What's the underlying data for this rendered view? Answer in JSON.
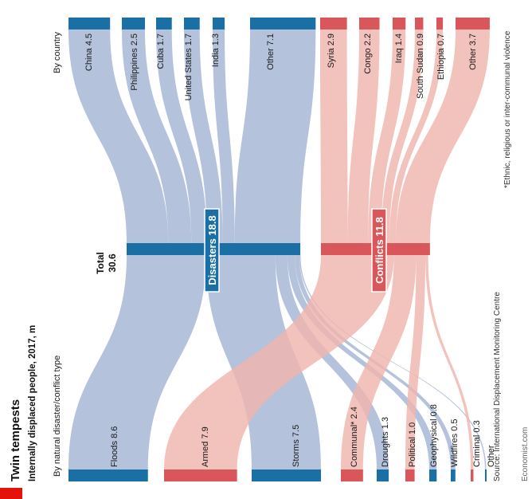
{
  "title": "Twin tempests",
  "subtitle": "Internally displaced people, 2017, m",
  "axis_by_country": "By country",
  "axis_by_type": "By natural disaster/conflict type",
  "total_label": "Total",
  "total_value": "30.6",
  "footnote": "*Ethnic, religious or inter-communal violence",
  "source": "Source: International Displacement Monitoring Centre",
  "credit": "Economist.com",
  "colors": {
    "disaster_flow": "#a3b5d3",
    "conflict_flow": "#efb4ae",
    "disaster_node": "#1a6fa5",
    "conflict_node": "#d9565a",
    "accent_red": "#e3120b"
  },
  "chart_data": {
    "type": "sankey",
    "title": "Twin tempests",
    "subtitle": "Internally displaced people, 2017, m",
    "unit": "m",
    "total": 30.6,
    "groups": [
      {
        "key": "disasters",
        "label": "Disasters 18.8",
        "value": 18.8,
        "countries": [
          {
            "label": "China 4.5",
            "value": 4.5
          },
          {
            "label": "Philippines 2.5",
            "value": 2.5
          },
          {
            "label": "Cuba 1.7",
            "value": 1.7
          },
          {
            "label": "United States 1.7",
            "value": 1.7
          },
          {
            "label": "India 1.3",
            "value": 1.3
          },
          {
            "label": "Other 7.1",
            "value": 7.1
          }
        ],
        "types": [
          {
            "label": "Floods 8.6",
            "value": 8.6
          },
          {
            "label": "Storms 7.5",
            "value": 7.5
          },
          {
            "label": "Droughts 1.3",
            "value": 1.3
          },
          {
            "label": "Geophysical 0.8",
            "value": 0.8
          },
          {
            "label": "Wildfires 0.5",
            "value": 0.5
          },
          {
            "label": "Other",
            "value": 0.1
          }
        ]
      },
      {
        "key": "conflicts",
        "label": "Conflicts 11.8",
        "value": 11.8,
        "countries": [
          {
            "label": "Syria 2.9",
            "value": 2.9
          },
          {
            "label": "Congo 2.2",
            "value": 2.2
          },
          {
            "label": "Iraq 1.4",
            "value": 1.4
          },
          {
            "label": "South Sudan 0.9",
            "value": 0.9
          },
          {
            "label": "Ethiopia 0.7",
            "value": 0.7
          },
          {
            "label": "Other 3.7",
            "value": 3.7
          }
        ],
        "types": [
          {
            "label": "Armed 7.9",
            "value": 7.9
          },
          {
            "label": "Communal* 2.4",
            "value": 2.4
          },
          {
            "label": "Political 1.0",
            "value": 1.0
          },
          {
            "label": "Criminal 0.3",
            "value": 0.3
          }
        ]
      }
    ]
  }
}
